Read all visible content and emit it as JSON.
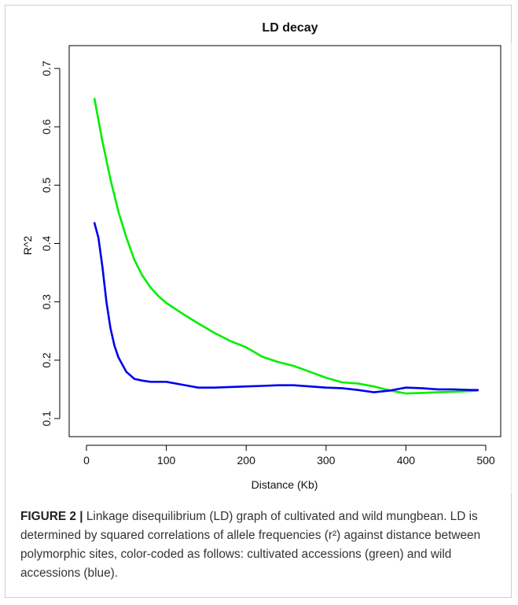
{
  "chart_data": {
    "type": "line",
    "title": "LD decay",
    "xlabel": "Distance (Kb)",
    "ylabel": "R^2",
    "xlim": [
      0,
      500
    ],
    "ylim": [
      0.1,
      0.7
    ],
    "x_ticks": [
      "0",
      "100",
      "200",
      "300",
      "400",
      "500"
    ],
    "y_ticks": [
      "0.1",
      "0.2",
      "0.3",
      "0.4",
      "0.5",
      "0.6",
      "0.7"
    ],
    "grid": false,
    "legend": "none",
    "series": [
      {
        "color": "#00ee00",
        "x": [
          10,
          20,
          30,
          40,
          50,
          60,
          70,
          80,
          90,
          100,
          120,
          140,
          160,
          180,
          200,
          220,
          240,
          260,
          280,
          300,
          320,
          340,
          360,
          380,
          400,
          420,
          440,
          460,
          480,
          490
        ],
        "y": [
          0.648,
          0.575,
          0.51,
          0.455,
          0.41,
          0.372,
          0.345,
          0.325,
          0.31,
          0.298,
          0.28,
          0.263,
          0.247,
          0.233,
          0.222,
          0.206,
          0.197,
          0.19,
          0.18,
          0.17,
          0.162,
          0.16,
          0.155,
          0.148,
          0.143,
          0.144,
          0.145,
          0.146,
          0.147,
          0.148
        ]
      },
      {
        "color": "#0000ee",
        "x": [
          10,
          15,
          20,
          25,
          30,
          35,
          40,
          50,
          60,
          70,
          80,
          100,
          120,
          140,
          160,
          180,
          200,
          220,
          240,
          260,
          280,
          300,
          320,
          340,
          360,
          380,
          400,
          420,
          440,
          460,
          480,
          490
        ],
        "y": [
          0.435,
          0.41,
          0.36,
          0.3,
          0.255,
          0.225,
          0.205,
          0.18,
          0.168,
          0.165,
          0.163,
          0.163,
          0.158,
          0.153,
          0.153,
          0.154,
          0.155,
          0.156,
          0.157,
          0.157,
          0.155,
          0.153,
          0.152,
          0.149,
          0.145,
          0.148,
          0.153,
          0.152,
          0.15,
          0.15,
          0.149,
          0.149
        ]
      }
    ]
  },
  "caption": {
    "label": "FIGURE 2 |",
    "text": " Linkage disequilibrium (LD) graph of cultivated and wild mungbean. LD is determined by squared correlations of allele frequencies (r²) against distance between polymorphic sites, color-coded as follows: cultivated accessions (green) and wild accessions (blue)."
  }
}
